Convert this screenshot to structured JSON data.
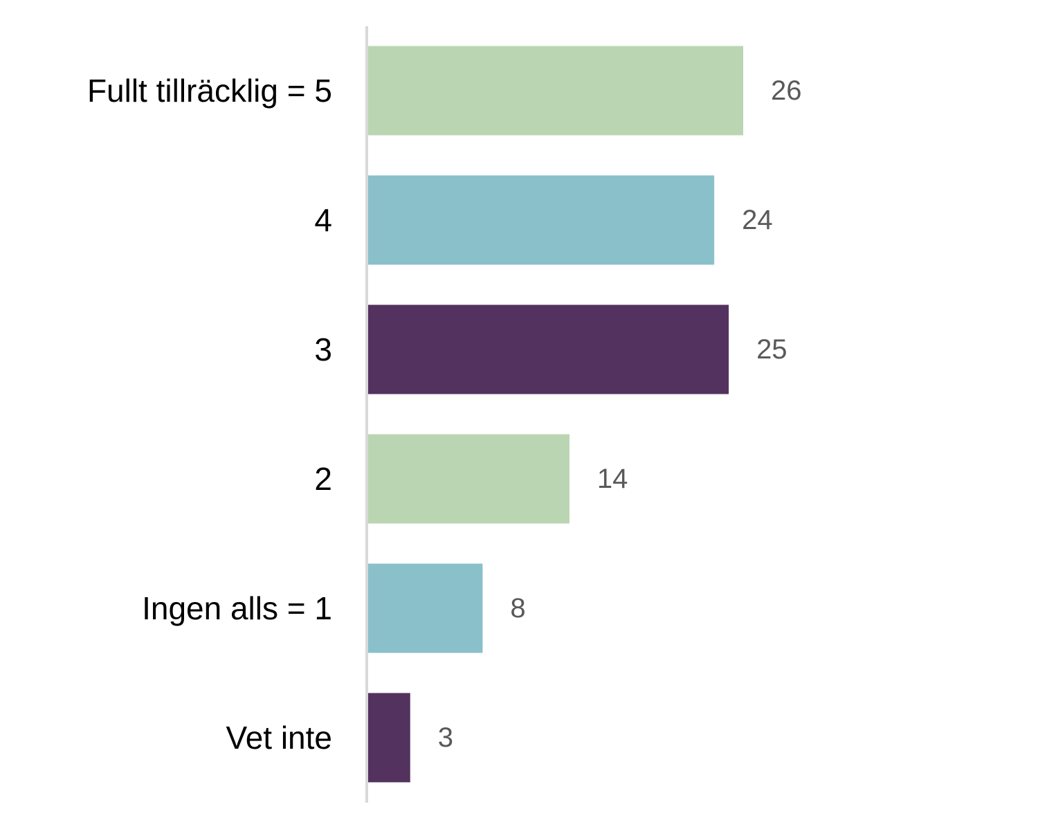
{
  "chart_data": {
    "type": "bar",
    "orientation": "horizontal",
    "categories": [
      "Fullt tillräcklig = 5",
      "4",
      "3",
      "2",
      "Ingen alls = 1",
      "Vet inte"
    ],
    "values": [
      26,
      24,
      25,
      14,
      8,
      3
    ],
    "bar_colors": [
      "#bad5b2",
      "#8ac0c9",
      "#54325f",
      "#bad5b2",
      "#8ac0c9",
      "#54325f"
    ],
    "axis_color": "#d9d9d9",
    "xlim": [
      0,
      36
    ],
    "grid": false,
    "legend": "none",
    "title": "",
    "xlabel": "",
    "ylabel": ""
  }
}
